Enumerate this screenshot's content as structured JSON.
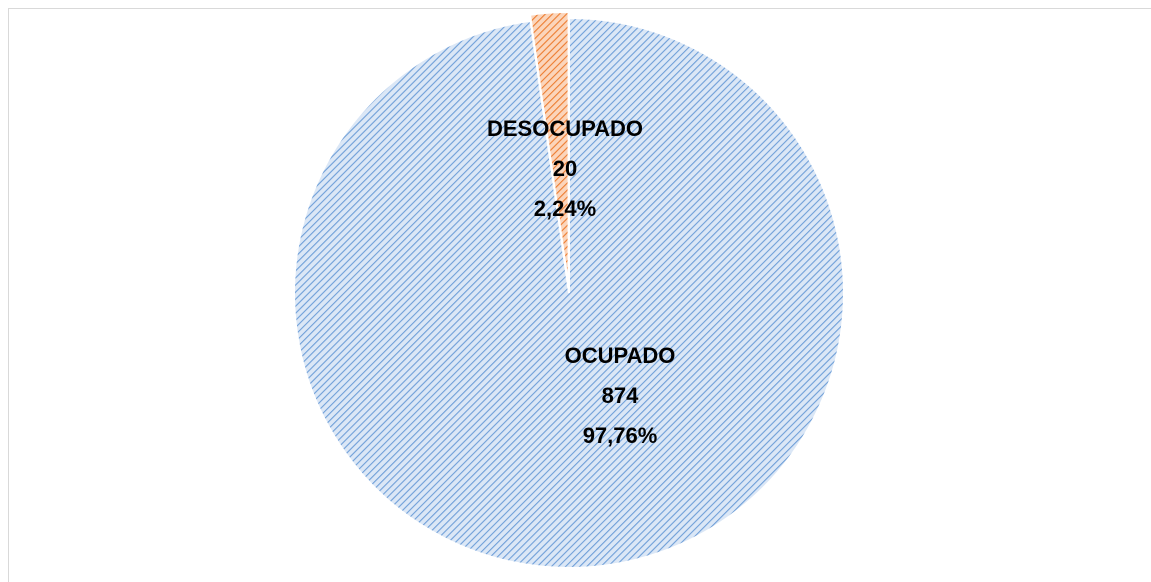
{
  "chart_data": {
    "type": "pie",
    "categories": [
      "OCUPADO",
      "DESOCUPADO"
    ],
    "values": [
      874,
      20
    ],
    "percent_labels": [
      "97,76%",
      "2,24%"
    ],
    "colors": [
      "#6f9fd8",
      "#ed7d31"
    ],
    "fills": [
      "#dbe7f6",
      "#fbd5bb"
    ]
  }
}
